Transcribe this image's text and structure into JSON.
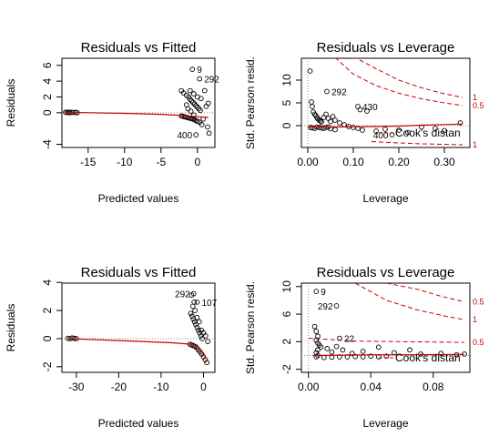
{
  "chart_data": [
    {
      "id": "p1",
      "type": "scatter",
      "title": "Residuals vs Fitted",
      "xlabel": "Predicted values",
      "ylabel": "Residuals",
      "xlim": [
        -18.6,
        2.4
      ],
      "ylim": [
        -4.4,
        6.9
      ],
      "xticks": [
        -15,
        -10,
        -5,
        0
      ],
      "yticks": [
        -4,
        0,
        2,
        4,
        6
      ],
      "refline_y": 0,
      "smooth": [
        [
          -18.2,
          0.05
        ],
        [
          -15,
          0.0
        ],
        [
          -10,
          -0.08
        ],
        [
          -5,
          -0.2
        ],
        [
          -2,
          -0.35
        ],
        [
          0,
          -0.5
        ],
        [
          1.5,
          -0.6
        ]
      ],
      "points": [
        [
          -18.1,
          0.05
        ],
        [
          -17.9,
          0.02
        ],
        [
          -17.7,
          0.08
        ],
        [
          -17.5,
          0.0
        ],
        [
          -17.3,
          0.05
        ],
        [
          -17.0,
          0.03
        ],
        [
          -16.7,
          0.06
        ],
        [
          -16.5,
          0.0
        ],
        [
          -2.2,
          2.8
        ],
        [
          -1.9,
          2.5
        ],
        [
          -1.5,
          2.2
        ],
        [
          -1.2,
          2.0
        ],
        [
          -1.0,
          1.7
        ],
        [
          -0.8,
          1.5
        ],
        [
          -0.6,
          1.3
        ],
        [
          -0.4,
          1.1
        ],
        [
          -0.2,
          0.9
        ],
        [
          0.0,
          0.7
        ],
        [
          0.2,
          0.5
        ],
        [
          0.4,
          0.3
        ],
        [
          -2.2,
          -0.4
        ],
        [
          -2.0,
          -0.45
        ],
        [
          -1.8,
          -0.5
        ],
        [
          -1.6,
          -0.55
        ],
        [
          -1.4,
          -0.6
        ],
        [
          -1.2,
          -0.65
        ],
        [
          -1.0,
          -0.7
        ],
        [
          -0.8,
          -0.75
        ],
        [
          -0.6,
          -0.8
        ],
        [
          -0.4,
          -0.9
        ],
        [
          -0.2,
          -1.0
        ],
        [
          0.0,
          -1.1
        ],
        [
          0.3,
          -1.2
        ],
        [
          0.6,
          -1.5
        ],
        [
          -1.0,
          2.8
        ],
        [
          -0.5,
          2.4
        ],
        [
          0.0,
          2.0
        ],
        [
          0.5,
          1.8
        ],
        [
          1.0,
          2.8
        ],
        [
          1.5,
          1.2
        ],
        [
          1.2,
          0.8
        ],
        [
          0.8,
          -0.8
        ],
        [
          1.4,
          -1.8
        ],
        [
          1.6,
          -2.6
        ],
        [
          -1.5,
          1.0
        ],
        [
          -1.3,
          0.5
        ],
        [
          -0.9,
          0.2
        ],
        [
          -0.5,
          -0.3
        ],
        [
          -0.7,
          5.5
        ],
        [
          0.3,
          4.3
        ],
        [
          -0.2,
          -2.8
        ]
      ],
      "labels": [
        {
          "text": "9",
          "x": -0.7,
          "y": 5.5,
          "pos": "right"
        },
        {
          "text": "292",
          "x": 0.3,
          "y": 4.3,
          "pos": "right"
        },
        {
          "text": "400",
          "x": -0.2,
          "y": -2.8,
          "pos": "left"
        }
      ]
    },
    {
      "id": "p2",
      "type": "scatter",
      "title": "Residuals vs Leverage",
      "xlabel": "Leverage",
      "ylabel": "Std. Pearson resid.",
      "xlim": [
        -0.014,
        0.356
      ],
      "ylim": [
        -4.8,
        14.8
      ],
      "xticks": [
        0.0,
        0.1,
        0.2,
        0.3
      ],
      "xtick_labels": [
        "0.00",
        "0.10",
        "0.20",
        "0.30"
      ],
      "yticks": [
        0,
        5,
        10
      ],
      "refline_y": 0,
      "cook_curves": [
        {
          "label": "0.5",
          "points": [
            [
              0.06,
              15
            ],
            [
              0.1,
              11.3
            ],
            [
              0.15,
              8.8
            ],
            [
              0.2,
              7.1
            ],
            [
              0.25,
              5.9
            ],
            [
              0.3,
              5.0
            ],
            [
              0.34,
              4.4
            ]
          ]
        },
        {
          "label": "1",
          "points": [
            [
              0.1,
              15.2
            ],
            [
              0.15,
              12.5
            ],
            [
              0.2,
              10.0
            ],
            [
              0.25,
              8.3
            ],
            [
              0.3,
              7.0
            ],
            [
              0.34,
              6.2
            ]
          ]
        },
        {
          "label": "1",
          "points": [
            [
              0.14,
              -3.5
            ],
            [
              0.2,
              -3.8
            ],
            [
              0.25,
              -4.0
            ],
            [
              0.3,
              -4.1
            ],
            [
              0.34,
              -4.2
            ]
          ]
        }
      ],
      "smooth": [
        [
          0.0,
          -0.3
        ],
        [
          0.05,
          -0.3
        ],
        [
          0.1,
          -0.25
        ],
        [
          0.15,
          -0.2
        ],
        [
          0.2,
          -0.1
        ],
        [
          0.25,
          0.1
        ],
        [
          0.3,
          0.25
        ],
        [
          0.34,
          0.35
        ]
      ],
      "points": [
        [
          0.005,
          12.0
        ],
        [
          0.008,
          5.2
        ],
        [
          0.01,
          4.2
        ],
        [
          0.012,
          3.0
        ],
        [
          0.015,
          2.5
        ],
        [
          0.018,
          2.2
        ],
        [
          0.02,
          1.8
        ],
        [
          0.022,
          1.5
        ],
        [
          0.025,
          1.2
        ],
        [
          0.028,
          1.0
        ],
        [
          0.03,
          0.8
        ],
        [
          0.006,
          -0.4
        ],
        [
          0.01,
          -0.5
        ],
        [
          0.015,
          -0.6
        ],
        [
          0.02,
          -0.3
        ],
        [
          0.025,
          -0.4
        ],
        [
          0.03,
          -0.5
        ],
        [
          0.035,
          -0.6
        ],
        [
          0.04,
          -0.4
        ],
        [
          0.045,
          -0.3
        ],
        [
          0.05,
          -0.7
        ],
        [
          0.06,
          -0.9
        ],
        [
          0.05,
          0.9
        ],
        [
          0.06,
          1.2
        ],
        [
          0.07,
          0.6
        ],
        [
          0.08,
          0.2
        ],
        [
          0.09,
          -0.2
        ],
        [
          0.1,
          -0.4
        ],
        [
          0.11,
          -0.6
        ],
        [
          0.12,
          -1.0
        ],
        [
          0.13,
          3.2
        ],
        [
          0.115,
          3.5
        ],
        [
          0.15,
          -1.2
        ],
        [
          0.17,
          -0.8
        ],
        [
          0.2,
          -1.0
        ],
        [
          0.22,
          -1.5
        ],
        [
          0.25,
          -0.3
        ],
        [
          0.28,
          -0.6
        ],
        [
          0.3,
          -1.1
        ],
        [
          0.335,
          0.6
        ],
        [
          0.04,
          2.5
        ],
        [
          0.035,
          1.8
        ],
        [
          0.045,
          1.6
        ],
        [
          0.055,
          2.0
        ],
        [
          0.042,
          7.5
        ],
        [
          0.11,
          4.2
        ],
        [
          0.185,
          -2.0
        ]
      ],
      "labels": [
        {
          "text": "292",
          "x": 0.042,
          "y": 7.5,
          "pos": "right"
        },
        {
          "text": "430",
          "x": 0.11,
          "y": 4.2,
          "pos": "right"
        },
        {
          "text": "400",
          "x": 0.185,
          "y": -2.0,
          "pos": "left"
        }
      ],
      "legend_text": "Cook's distan"
    },
    {
      "id": "p3",
      "type": "scatter",
      "title": "Residuals vs Fitted",
      "xlabel": "Predicted values",
      "ylabel": "Residuals",
      "xlim": [
        -33.4,
        2.7
      ],
      "ylim": [
        -2.4,
        3.95
      ],
      "xticks": [
        -30,
        -20,
        -10,
        0
      ],
      "yticks": [
        -2,
        0,
        2,
        4
      ],
      "refline_y": 0,
      "smooth": [
        [
          -32,
          0.0
        ],
        [
          -25,
          -0.08
        ],
        [
          -15,
          -0.2
        ],
        [
          -7,
          -0.3
        ],
        [
          -3,
          -0.4
        ],
        [
          -1,
          -0.7
        ],
        [
          1,
          -1.5
        ]
      ],
      "points": [
        [
          -32.0,
          0.02
        ],
        [
          -31.5,
          0.0
        ],
        [
          -31.0,
          0.05
        ],
        [
          -30.5,
          0.02
        ],
        [
          -30.0,
          0.0
        ],
        [
          -3.0,
          1.8
        ],
        [
          -2.7,
          1.6
        ],
        [
          -2.4,
          1.4
        ],
        [
          -2.1,
          1.2
        ],
        [
          -1.8,
          1.0
        ],
        [
          -1.5,
          0.8
        ],
        [
          -1.2,
          0.6
        ],
        [
          -0.9,
          0.4
        ],
        [
          -0.6,
          0.2
        ],
        [
          -0.3,
          0.0
        ],
        [
          -3.2,
          -0.4
        ],
        [
          -2.8,
          -0.45
        ],
        [
          -2.4,
          -0.5
        ],
        [
          -2.0,
          -0.55
        ],
        [
          -1.6,
          -0.65
        ],
        [
          -1.2,
          -0.8
        ],
        [
          -0.8,
          -0.95
        ],
        [
          -0.4,
          -1.1
        ],
        [
          0.0,
          -1.3
        ],
        [
          0.4,
          -1.5
        ],
        [
          0.8,
          -1.7
        ],
        [
          -2.5,
          2.3
        ],
        [
          -2.0,
          2.0
        ],
        [
          -1.5,
          1.5
        ],
        [
          -1.0,
          1.2
        ],
        [
          -0.5,
          0.6
        ],
        [
          0.0,
          0.4
        ],
        [
          0.5,
          0.2
        ],
        [
          1.0,
          -0.2
        ],
        [
          -2.8,
          3.1
        ],
        [
          -2.2,
          2.6
        ],
        [
          -2.3,
          3.2
        ],
        [
          -1.5,
          2.6
        ]
      ],
      "labels": [
        {
          "text": "292",
          "x": -2.3,
          "y": 3.2,
          "pos": "left"
        },
        {
          "text": "107",
          "x": -1.5,
          "y": 2.6,
          "pos": "right"
        }
      ]
    },
    {
      "id": "p4",
      "type": "scatter",
      "title": "Residuals vs Leverage",
      "xlabel": "Leverage",
      "ylabel": "Std. Pearson resid.",
      "xlim": [
        -0.0045,
        0.1035
      ],
      "ylim": [
        -2.45,
        10.5
      ],
      "xticks": [
        0.0,
        0.04,
        0.08
      ],
      "xtick_labels": [
        "0.00",
        "0.04",
        "0.08"
      ],
      "yticks": [
        -2,
        2,
        6,
        10
      ],
      "refline_y": 0,
      "cook_curves": [
        {
          "label": "1",
          "points": [
            [
              0.03,
              10.5
            ],
            [
              0.05,
              8.0
            ],
            [
              0.07,
              6.6
            ],
            [
              0.09,
              5.6
            ],
            [
              0.1,
              5.2
            ]
          ]
        },
        {
          "label": "0.5",
          "points": [
            [
              0.05,
              10.5
            ],
            [
              0.07,
              9.6
            ],
            [
              0.085,
              8.6
            ],
            [
              0.1,
              7.8
            ]
          ]
        },
        {
          "label": "0.5",
          "points": [
            [
              0.0,
              2.5
            ],
            [
              0.03,
              2.1
            ],
            [
              0.06,
              2.0
            ],
            [
              0.1,
              1.9
            ]
          ]
        }
      ],
      "smooth": [
        [
          0.003,
          0.0
        ],
        [
          0.02,
          0.05
        ],
        [
          0.04,
          0.1
        ],
        [
          0.06,
          0.1
        ],
        [
          0.08,
          0.12
        ],
        [
          0.1,
          0.15
        ]
      ],
      "points": [
        [
          0.004,
          4.2
        ],
        [
          0.005,
          3.5
        ],
        [
          0.006,
          2.8
        ],
        [
          0.005,
          2.2
        ],
        [
          0.006,
          1.8
        ],
        [
          0.007,
          1.5
        ],
        [
          0.008,
          1.2
        ],
        [
          0.006,
          0.8
        ],
        [
          0.005,
          0.4
        ],
        [
          0.006,
          0.0
        ],
        [
          0.005,
          -0.2
        ],
        [
          0.01,
          -0.3
        ],
        [
          0.015,
          -0.25
        ],
        [
          0.02,
          -0.2
        ],
        [
          0.025,
          -0.2
        ],
        [
          0.03,
          -0.15
        ],
        [
          0.035,
          -0.2
        ],
        [
          0.04,
          -0.1
        ],
        [
          0.045,
          -0.2
        ],
        [
          0.05,
          -0.1
        ],
        [
          0.012,
          1.0
        ],
        [
          0.015,
          0.5
        ],
        [
          0.018,
          1.3
        ],
        [
          0.022,
          0.8
        ],
        [
          0.028,
          0.3
        ],
        [
          0.035,
          0.6
        ],
        [
          0.045,
          1.2
        ],
        [
          0.055,
          0.4
        ],
        [
          0.065,
          0.8
        ],
        [
          0.072,
          0.2
        ],
        [
          0.085,
          0.3
        ],
        [
          0.095,
          0.1
        ],
        [
          0.1,
          0.2
        ],
        [
          0.005,
          9.3
        ],
        [
          0.018,
          7.2
        ],
        [
          0.02,
          2.5
        ]
      ],
      "labels": [
        {
          "text": "9",
          "x": 0.005,
          "y": 9.3,
          "pos": "right"
        },
        {
          "text": "292",
          "x": 0.018,
          "y": 7.2,
          "pos": "left"
        },
        {
          "text": "22",
          "x": 0.02,
          "y": 2.5,
          "pos": "right"
        }
      ],
      "legend_text": "Cook's distan"
    }
  ]
}
